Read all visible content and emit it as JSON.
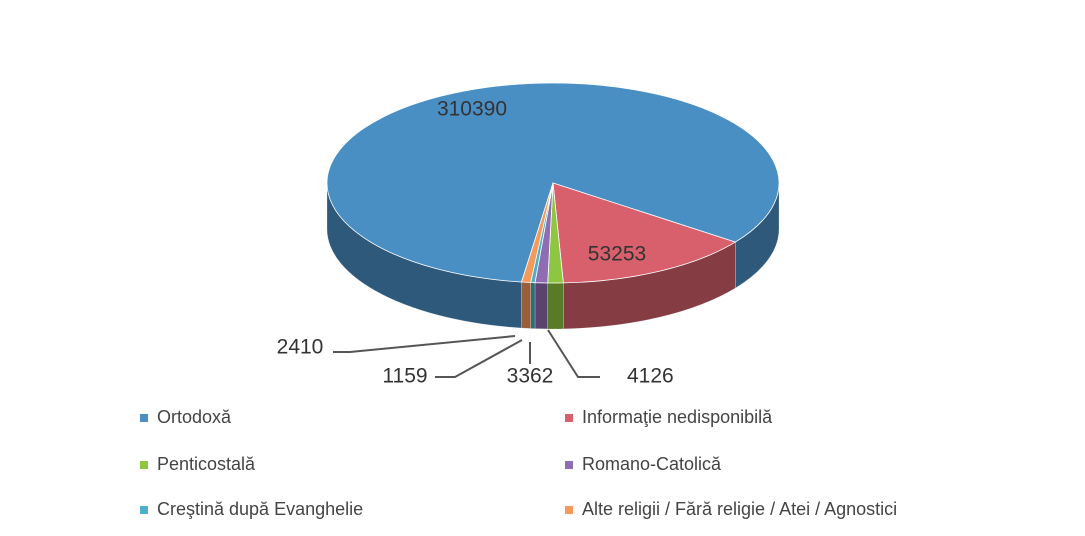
{
  "chart_data": {
    "type": "pie",
    "categories": [
      "Ortodoxă",
      "Informaţie nedisponibilă",
      "Penticostală",
      "Romano-Catolică",
      "Creştină după Evanghelie",
      "Alte religii / Fără religie / Atei / Agnostici"
    ],
    "values": [
      310390,
      53253,
      4126,
      3362,
      1159,
      2410
    ],
    "colors": [
      "#4a8fc4",
      "#d7606c",
      "#8ec641",
      "#8f6db3",
      "#4bb0c8",
      "#f59a5b"
    ]
  }
}
